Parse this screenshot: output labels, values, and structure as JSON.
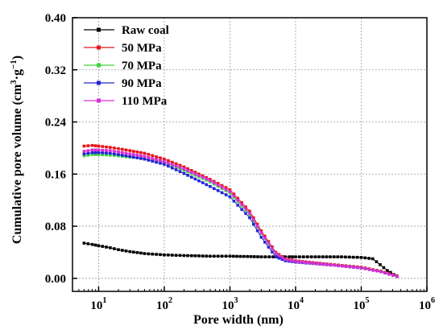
{
  "chart_data": {
    "type": "line",
    "xlabel": "Pore width (nm)",
    "ylabel": "Cumulative pore volume (cm",
    "ylabel_sup1": "3",
    "ylabel_mid": "·g",
    "ylabel_sup2": "−1",
    "ylabel_end": ")",
    "x_scale": "log",
    "xlim": [
      4,
      1000000
    ],
    "ylim": [
      -0.02,
      0.4
    ],
    "grid": true,
    "legend_position": "top-left",
    "x_ticks": [
      {
        "value": 10,
        "base": "10",
        "exp": "1"
      },
      {
        "value": 100,
        "base": "10",
        "exp": "2"
      },
      {
        "value": 1000,
        "base": "10",
        "exp": "3"
      },
      {
        "value": 10000,
        "base": "10",
        "exp": "4"
      },
      {
        "value": 100000,
        "base": "10",
        "exp": "5"
      },
      {
        "value": 1000000,
        "base": "10",
        "exp": "6"
      }
    ],
    "y_ticks": [
      {
        "value": 0.0,
        "label": "0.00"
      },
      {
        "value": 0.08,
        "label": "0.08"
      },
      {
        "value": 0.16,
        "label": "0.16"
      },
      {
        "value": 0.24,
        "label": "0.24"
      },
      {
        "value": 0.32,
        "label": "0.32"
      },
      {
        "value": 0.4,
        "label": "0.40"
      }
    ],
    "series": [
      {
        "name": "Raw coal",
        "color": "#000000",
        "x": [
          6,
          8,
          10,
          15,
          20,
          30,
          50,
          100,
          200,
          500,
          1000,
          3000,
          6000,
          8000,
          10000,
          20000,
          50000,
          100000,
          150000,
          250000,
          350000
        ],
        "y": [
          0.054,
          0.052,
          0.05,
          0.047,
          0.044,
          0.041,
          0.038,
          0.036,
          0.035,
          0.034,
          0.034,
          0.033,
          0.033,
          0.033,
          0.033,
          0.033,
          0.033,
          0.032,
          0.03,
          0.012,
          0.003
        ]
      },
      {
        "name": "50   MPa",
        "color": "#e8161b",
        "x": [
          6,
          8,
          10,
          15,
          20,
          30,
          50,
          100,
          200,
          500,
          1000,
          2000,
          3000,
          5000,
          7000,
          10000,
          30000,
          100000,
          200000,
          350000
        ],
        "y": [
          0.203,
          0.204,
          0.203,
          0.201,
          0.199,
          0.196,
          0.192,
          0.183,
          0.171,
          0.152,
          0.136,
          0.103,
          0.073,
          0.04,
          0.03,
          0.027,
          0.022,
          0.017,
          0.011,
          0.004
        ]
      },
      {
        "name": "70   MPa",
        "color": "#3ed43e",
        "x": [
          6,
          8,
          10,
          15,
          20,
          30,
          50,
          100,
          200,
          500,
          1000,
          2000,
          3000,
          5000,
          7000,
          10000,
          30000,
          100000,
          200000,
          350000
        ],
        "y": [
          0.188,
          0.19,
          0.19,
          0.189,
          0.188,
          0.186,
          0.184,
          0.178,
          0.166,
          0.148,
          0.131,
          0.098,
          0.069,
          0.038,
          0.029,
          0.026,
          0.021,
          0.016,
          0.01,
          0.003
        ]
      },
      {
        "name": "90   MPa",
        "color": "#2424d8",
        "x": [
          6,
          8,
          10,
          15,
          20,
          30,
          50,
          100,
          200,
          500,
          1000,
          2000,
          3000,
          5000,
          7000,
          10000,
          30000,
          100000,
          200000,
          350000
        ],
        "y": [
          0.191,
          0.193,
          0.193,
          0.192,
          0.19,
          0.187,
          0.183,
          0.175,
          0.161,
          0.141,
          0.125,
          0.093,
          0.063,
          0.033,
          0.027,
          0.025,
          0.021,
          0.016,
          0.01,
          0.003
        ]
      },
      {
        "name": "110 MPa",
        "color": "#d62fd6",
        "x": [
          6,
          8,
          10,
          15,
          20,
          30,
          50,
          100,
          200,
          500,
          1000,
          2000,
          3000,
          5000,
          7000,
          10000,
          30000,
          100000,
          200000,
          350000
        ],
        "y": [
          0.195,
          0.197,
          0.197,
          0.196,
          0.194,
          0.191,
          0.187,
          0.179,
          0.168,
          0.15,
          0.133,
          0.1,
          0.07,
          0.038,
          0.029,
          0.026,
          0.021,
          0.016,
          0.01,
          0.003
        ]
      }
    ]
  }
}
